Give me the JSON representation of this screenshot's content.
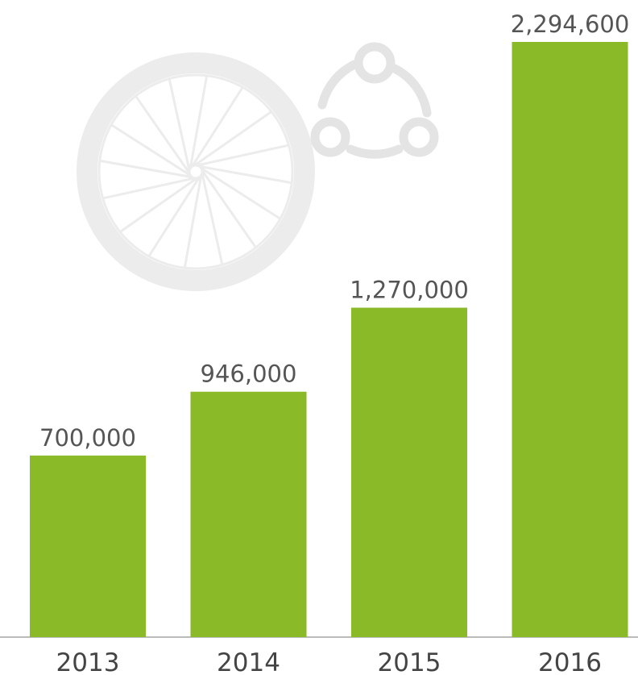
{
  "chart_data": {
    "type": "bar",
    "categories": [
      "2013",
      "2014",
      "2015",
      "2016"
    ],
    "values": [
      700000,
      946000,
      1270000,
      2294600
    ],
    "value_labels": [
      "700,000",
      "946,000",
      "1,270,000",
      "2,294,600"
    ],
    "color": "#8aba27"
  }
}
